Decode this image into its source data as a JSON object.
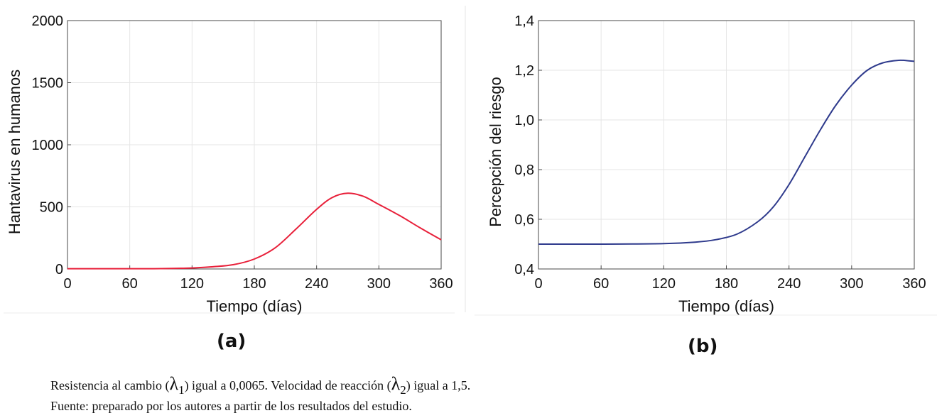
{
  "chart_data": [
    {
      "type": "line",
      "panel_label": "(a)",
      "xlabel": "Tiempo (días)",
      "ylabel": "Hantavirus en humanos",
      "xlim": [
        0,
        360
      ],
      "ylim": [
        0,
        2000
      ],
      "xticks": [
        0,
        60,
        120,
        180,
        240,
        300,
        360
      ],
      "yticks": [
        0,
        500,
        1000,
        1500,
        2000
      ],
      "ytick_labels": [
        "0",
        "500",
        "1000",
        "1500",
        "2000"
      ],
      "grid": true,
      "series": [
        {
          "color": "#e8203a",
          "x": [
            0,
            60,
            90,
            120,
            140,
            160,
            180,
            200,
            220,
            240,
            255,
            270,
            285,
            300,
            320,
            340,
            360
          ],
          "y": [
            2,
            2,
            3,
            8,
            18,
            35,
            80,
            170,
            320,
            480,
            575,
            610,
            585,
            520,
            430,
            330,
            235
          ]
        }
      ]
    },
    {
      "type": "line",
      "panel_label": "(b)",
      "xlabel": "Tiempo (días)",
      "ylabel": "Percepción del riesgo",
      "xlim": [
        0,
        360
      ],
      "ylim": [
        0.4,
        1.4
      ],
      "xticks": [
        0,
        60,
        120,
        180,
        240,
        300,
        360
      ],
      "yticks": [
        0.4,
        0.6,
        0.8,
        1.0,
        1.2,
        1.4
      ],
      "ytick_labels": [
        "0,4",
        "0,6",
        "0,8",
        "1,0",
        "1,2",
        "1,4"
      ],
      "grid": true,
      "series": [
        {
          "color": "#2e3a8c",
          "x": [
            0,
            60,
            120,
            150,
            170,
            190,
            210,
            225,
            240,
            255,
            270,
            285,
            300,
            315,
            330,
            345,
            355,
            360
          ],
          "y": [
            0.5,
            0.5,
            0.502,
            0.508,
            0.518,
            0.54,
            0.59,
            0.65,
            0.74,
            0.85,
            0.96,
            1.06,
            1.14,
            1.2,
            1.23,
            1.24,
            1.238,
            1.236
          ]
        }
      ]
    }
  ],
  "caption": {
    "line1_part1": "Resistencia al cambio (",
    "lambda1": "λ",
    "lambda1_sub": "1",
    "line1_part2": ") igual a 0,0065. Velocidad de reacción (",
    "lambda2": "λ",
    "lambda2_sub": "2",
    "line1_part3": ") igual a 1,5.",
    "line2": "Fuente: preparado por los autores a partir de los resultados del estudio."
  }
}
